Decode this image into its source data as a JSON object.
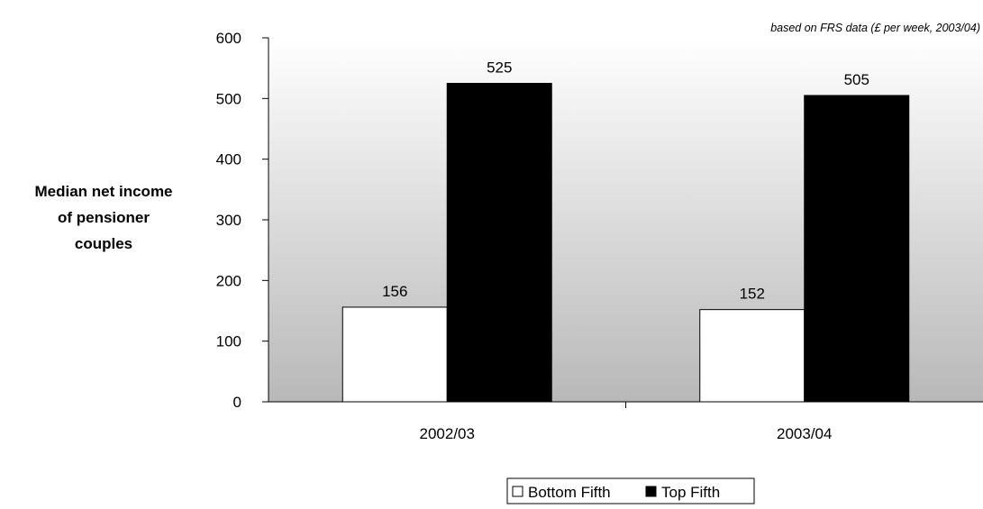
{
  "source_note": "based on FRS data (£ per week, 2003/04)",
  "chart_data": {
    "type": "bar",
    "title": "",
    "ylabel": "Median net income of pensioner couples",
    "ylabel_lines": [
      "Median net income",
      "of pensioner",
      "couples"
    ],
    "xlabel": "",
    "categories": [
      "2002/03",
      "2003/04"
    ],
    "ylim": [
      0,
      600
    ],
    "yticks": [
      0,
      100,
      200,
      300,
      400,
      500,
      600
    ],
    "series": [
      {
        "name": "Bottom Fifth",
        "values": [
          156,
          152
        ],
        "color": "#ffffff"
      },
      {
        "name": "Top Fifth",
        "values": [
          525,
          505
        ],
        "color": "#000000"
      }
    ],
    "legend_position": "bottom",
    "grid": false,
    "background": "gradient white to grey"
  }
}
